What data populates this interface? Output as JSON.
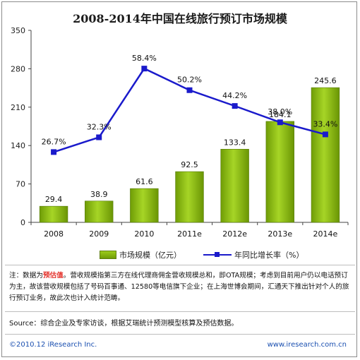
{
  "title": "2008-2014年中国在线旅行预订市场规模",
  "chart_data": {
    "type": "bar",
    "categories": [
      "2008",
      "2009",
      "2010",
      "2011e",
      "2012e",
      "2013e",
      "2014e"
    ],
    "series": [
      {
        "name": "市场规模（亿元）",
        "type": "bar",
        "values": [
          29.4,
          38.9,
          61.6,
          92.5,
          133.4,
          184.1,
          245.6
        ],
        "labels": [
          "29.4",
          "38.9",
          "61.6",
          "92.5",
          "133.4",
          "184.1",
          "245.6"
        ],
        "color": "#8bbf12"
      },
      {
        "name": "年同比增长率（%）",
        "type": "line",
        "values": [
          26.7,
          32.3,
          58.4,
          50.2,
          44.2,
          38.0,
          33.4
        ],
        "labels": [
          "26.7%",
          "32.3%",
          "58.4%",
          "50.2%",
          "44.2%",
          "38.0%",
          "33.4%"
        ],
        "color": "#1a1acb"
      }
    ],
    "ylim": [
      0,
      350
    ],
    "yticks": [
      "0",
      "70",
      "140",
      "210",
      "280",
      "350"
    ],
    "grid": false,
    "legend": "bottom"
  },
  "note": {
    "prefix": "注：数据为",
    "highlight": "预估值",
    "text": "。营收规模指第三方在线代理商佣金营收规模总和，即OTA规模；考虑到目前用户仍以电话预订为主，故该营收规模包括了号码百事通、12580等电信旗下企业；在上海世博会期间，汇通天下推出针对个人的旅行预订业务，故此次也计入统计范畴。"
  },
  "source": "Source：综合企业及专家访谈，根据艾瑞统计预测模型核算及预估数据。",
  "footer": {
    "left": "©2010.12 iResearch Inc.",
    "right": "www.iresearch.com.cn"
  }
}
